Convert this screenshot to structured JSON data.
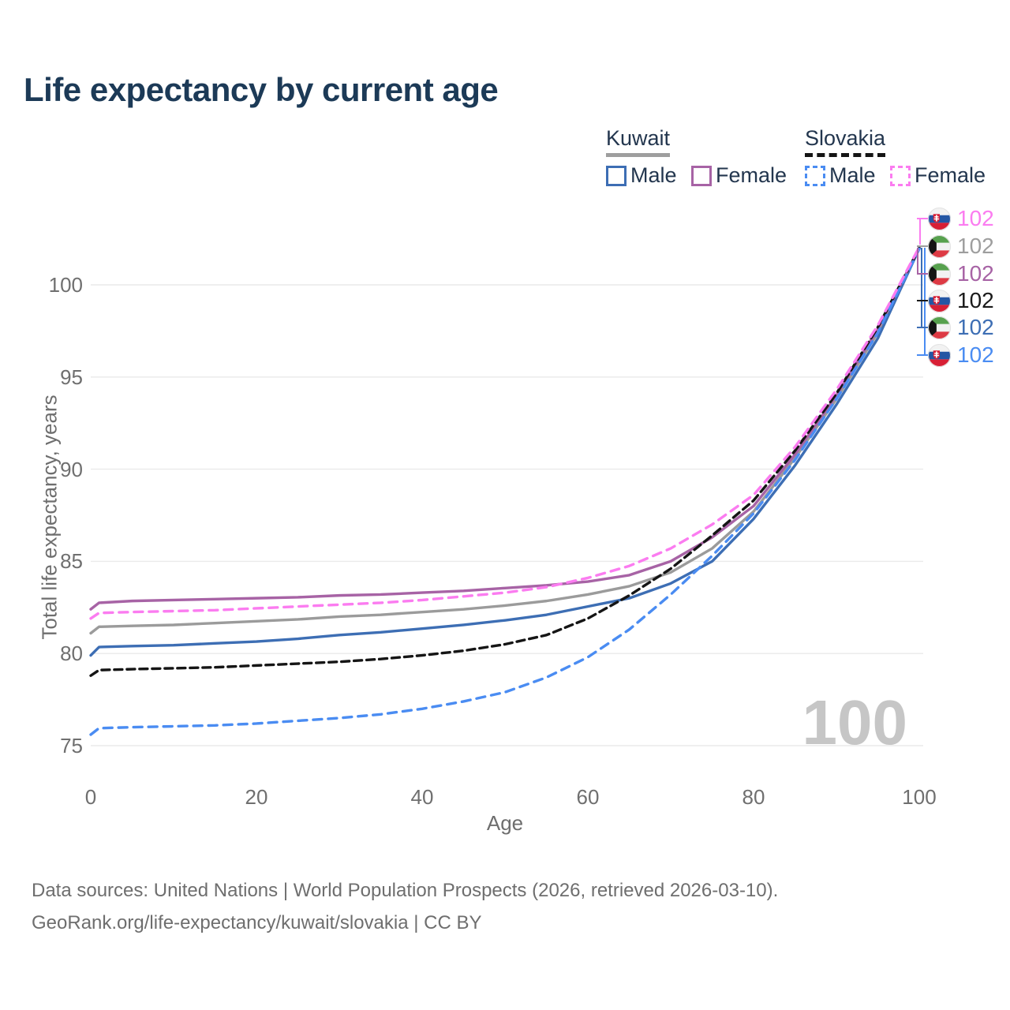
{
  "title": "Life expectancy by current age",
  "legend": {
    "groups": [
      {
        "country": "Kuwait",
        "line_style": "solid",
        "line_color": "#9e9e9e",
        "items": [
          {
            "label": "Male",
            "color": "#3d6eb4",
            "dashed": false
          },
          {
            "label": "Female",
            "color": "#a763a5",
            "dashed": false
          }
        ]
      },
      {
        "country": "Slovakia",
        "line_style": "dashed",
        "line_color": "#151515",
        "items": [
          {
            "label": "Male",
            "color": "#4a8cf2",
            "dashed": true
          },
          {
            "label": "Female",
            "color": "#fb7cf0",
            "dashed": true
          }
        ]
      }
    ]
  },
  "axes": {
    "y": {
      "title": "Total life expectancy, years",
      "ticks": [
        "100",
        "95",
        "90",
        "85",
        "80",
        "75"
      ]
    },
    "x": {
      "title": "Age",
      "ticks": [
        "0",
        "20",
        "40",
        "60",
        "80",
        "100"
      ]
    }
  },
  "watermark": "100",
  "annotations": [
    {
      "country": "Slovakia",
      "series": "Slovakia Female",
      "value": "102",
      "color": "#fb7cf0"
    },
    {
      "country": "Kuwait",
      "series": "Kuwait Both",
      "value": "102",
      "color": "#9e9e9e"
    },
    {
      "country": "Kuwait",
      "series": "Kuwait Female",
      "value": "102",
      "color": "#a763a5"
    },
    {
      "country": "Slovakia",
      "series": "Slovakia Both",
      "value": "102",
      "color": "#1a1a1a"
    },
    {
      "country": "Kuwait",
      "series": "Kuwait Male",
      "value": "102",
      "color": "#3d6eb4"
    },
    {
      "country": "Slovakia",
      "series": "Slovakia Male",
      "value": "102",
      "color": "#4a8cf2"
    }
  ],
  "footer": {
    "line1": "Data sources: United Nations | World Population Prospects (2026, retrieved 2026-03-10).",
    "line2": "GeoRank.org/life-expectancy/kuwait/slovakia | CC BY"
  },
  "chart_data": {
    "type": "line",
    "title": "Life expectancy by current age",
    "xlabel": "Age",
    "ylabel": "Total life expectancy, years",
    "xlim": [
      0,
      100
    ],
    "ylim": [
      75,
      102.5
    ],
    "xticks": [
      0,
      20,
      40,
      60,
      80,
      100
    ],
    "yticks": [
      75,
      80,
      85,
      90,
      95,
      100
    ],
    "grid": "horizontal",
    "legend_position": "top-right",
    "x": [
      0,
      1,
      5,
      10,
      15,
      20,
      25,
      30,
      35,
      40,
      45,
      50,
      55,
      60,
      65,
      70,
      75,
      80,
      85,
      90,
      95,
      100
    ],
    "series": [
      {
        "name": "Kuwait Both",
        "country": "Kuwait",
        "sex": "both",
        "color": "#9b9b9b",
        "dashed": false,
        "values": [
          81.1,
          81.45,
          81.5,
          81.55,
          81.65,
          81.75,
          81.85,
          82.0,
          82.1,
          82.25,
          82.4,
          82.6,
          82.85,
          83.2,
          83.65,
          84.4,
          85.7,
          87.7,
          90.6,
          93.8,
          97.4,
          102.03
        ]
      },
      {
        "name": "Kuwait Male",
        "country": "Kuwait",
        "sex": "male",
        "color": "#3d6eb4",
        "dashed": false,
        "values": [
          79.9,
          80.35,
          80.4,
          80.45,
          80.55,
          80.65,
          80.8,
          81.0,
          81.15,
          81.35,
          81.55,
          81.8,
          82.1,
          82.55,
          83.0,
          83.8,
          85.0,
          87.3,
          90.2,
          93.5,
          97.1,
          101.97
        ]
      },
      {
        "name": "Kuwait Female",
        "country": "Kuwait",
        "sex": "female",
        "color": "#a763a5",
        "dashed": false,
        "values": [
          82.4,
          82.75,
          82.85,
          82.9,
          82.95,
          83.0,
          83.05,
          83.15,
          83.2,
          83.3,
          83.4,
          83.55,
          83.7,
          83.9,
          84.25,
          85.0,
          86.3,
          88.0,
          90.8,
          94.0,
          97.6,
          102.01
        ]
      },
      {
        "name": "Slovakia Both",
        "country": "Slovakia",
        "sex": "both",
        "color": "#151515",
        "dashed": true,
        "values": [
          78.8,
          79.1,
          79.15,
          79.2,
          79.25,
          79.35,
          79.45,
          79.55,
          79.7,
          79.9,
          80.15,
          80.5,
          81.0,
          81.9,
          83.15,
          84.6,
          86.4,
          88.3,
          91.0,
          94.1,
          97.7,
          101.99
        ]
      },
      {
        "name": "Slovakia Male",
        "country": "Slovakia",
        "sex": "male",
        "color": "#4a8cf2",
        "dashed": true,
        "values": [
          75.6,
          75.95,
          76.0,
          76.05,
          76.1,
          76.2,
          76.35,
          76.5,
          76.7,
          77.0,
          77.4,
          77.9,
          78.7,
          79.8,
          81.3,
          83.2,
          85.3,
          87.6,
          90.5,
          93.8,
          97.4,
          101.95
        ]
      },
      {
        "name": "Slovakia Female",
        "country": "Slovakia",
        "sex": "female",
        "color": "#fb7cf0",
        "dashed": true,
        "values": [
          81.9,
          82.2,
          82.25,
          82.3,
          82.35,
          82.45,
          82.55,
          82.65,
          82.75,
          82.9,
          83.1,
          83.3,
          83.6,
          84.1,
          84.75,
          85.7,
          87.0,
          88.6,
          91.2,
          94.3,
          97.8,
          102.05
        ]
      }
    ]
  }
}
